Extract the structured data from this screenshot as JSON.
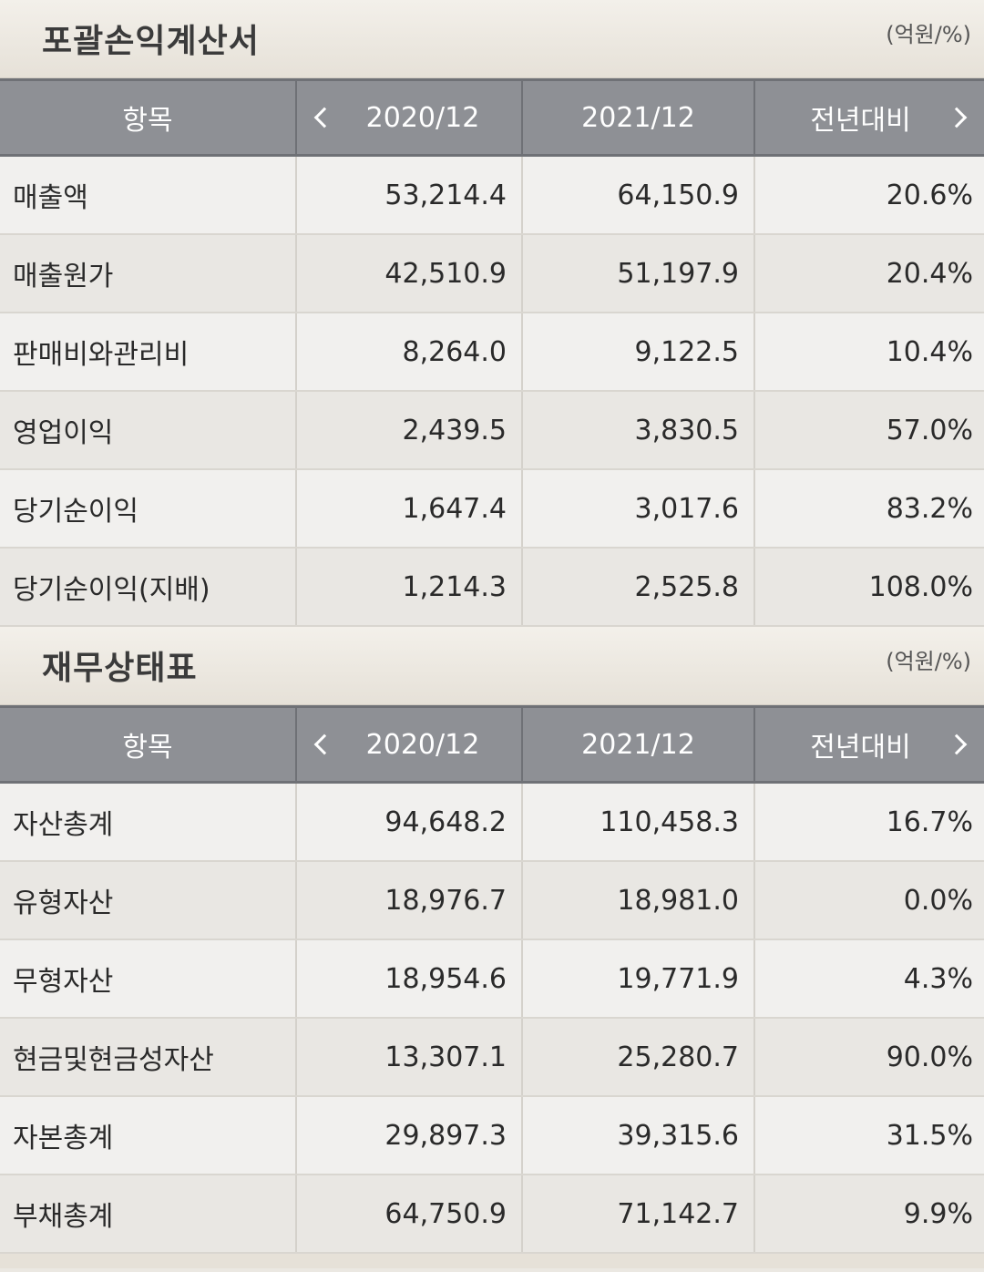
{
  "income": {
    "title": "포괄손익계산서",
    "unit": "(억원/%)",
    "headers": {
      "item": "항목",
      "year1": "2020/12",
      "year2": "2021/12",
      "yoy": "전년대비"
    },
    "rows": [
      {
        "label": "매출액",
        "y1": "53,214.4",
        "y2": "64,150.9",
        "yoy": "20.6%"
      },
      {
        "label": "매출원가",
        "y1": "42,510.9",
        "y2": "51,197.9",
        "yoy": "20.4%"
      },
      {
        "label": "판매비와관리비",
        "y1": "8,264.0",
        "y2": "9,122.5",
        "yoy": "10.4%"
      },
      {
        "label": "영업이익",
        "y1": "2,439.5",
        "y2": "3,830.5",
        "yoy": "57.0%"
      },
      {
        "label": "당기순이익",
        "y1": "1,647.4",
        "y2": "3,017.6",
        "yoy": "83.2%"
      },
      {
        "label": "당기순이익(지배)",
        "y1": "1,214.3",
        "y2": "2,525.8",
        "yoy": "108.0%"
      }
    ]
  },
  "balance": {
    "title": "재무상태표",
    "unit": "(억원/%)",
    "headers": {
      "item": "항목",
      "year1": "2020/12",
      "year2": "2021/12",
      "yoy": "전년대비"
    },
    "rows": [
      {
        "label": "자산총계",
        "y1": "94,648.2",
        "y2": "110,458.3",
        "yoy": "16.7%"
      },
      {
        "label": "유형자산",
        "y1": "18,976.7",
        "y2": "18,981.0",
        "yoy": "0.0%"
      },
      {
        "label": "무형자산",
        "y1": "18,954.6",
        "y2": "19,771.9",
        "yoy": "4.3%"
      },
      {
        "label": "현금및현금성자산",
        "y1": "13,307.1",
        "y2": "25,280.7",
        "yoy": "90.0%"
      },
      {
        "label": "자본총계",
        "y1": "29,897.3",
        "y2": "39,315.6",
        "yoy": "31.5%"
      },
      {
        "label": "부채총계",
        "y1": "64,750.9",
        "y2": "71,142.7",
        "yoy": "9.9%"
      }
    ]
  }
}
